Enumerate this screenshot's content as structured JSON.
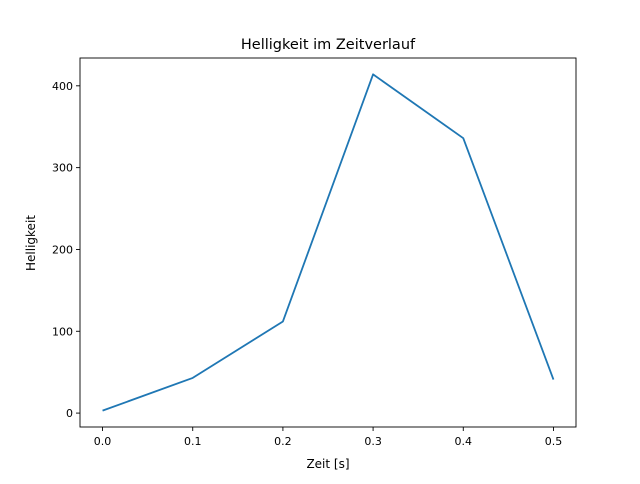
{
  "chart_data": {
    "type": "line",
    "title": "Helligkeit im Zeitverlauf",
    "xlabel": "Zeit [s]",
    "ylabel": "Helligkeit",
    "x": [
      0.0,
      0.1,
      0.2,
      0.3,
      0.4,
      0.5
    ],
    "series": [
      {
        "name": "Helligkeit",
        "values": [
          3,
          43,
          112,
          414,
          336,
          41
        ],
        "color": "#1f77b4"
      }
    ],
    "xlim": [
      -0.025,
      0.525
    ],
    "ylim": [
      -17,
      434
    ],
    "xticks": [
      0.0,
      0.1,
      0.2,
      0.3,
      0.4,
      0.5
    ],
    "xtick_labels": [
      "0.0",
      "0.1",
      "0.2",
      "0.3",
      "0.4",
      "0.5"
    ],
    "yticks": [
      0,
      100,
      200,
      300,
      400
    ],
    "ytick_labels": [
      "0",
      "100",
      "200",
      "300",
      "400"
    ],
    "grid": false,
    "legend": "none"
  }
}
